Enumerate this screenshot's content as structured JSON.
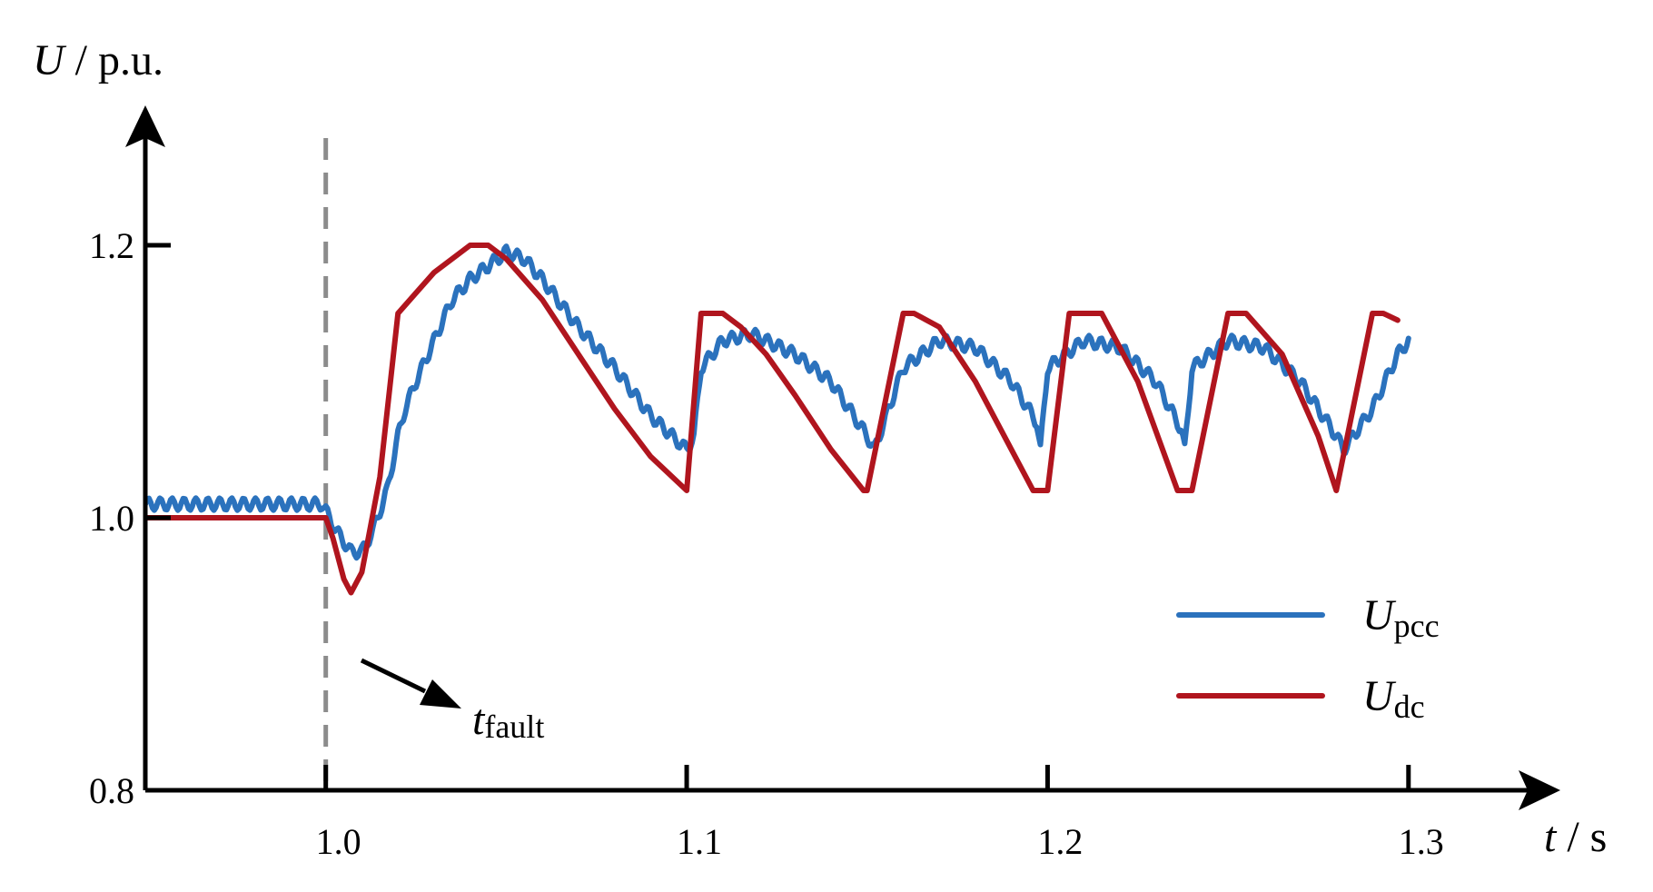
{
  "chart_data": {
    "type": "line",
    "xlabel": {
      "main": "t",
      "unit": " / s"
    },
    "ylabel": {
      "main": "U",
      "unit": " / p.u."
    },
    "xlim": [
      0.95,
      1.33
    ],
    "ylim": [
      0.8,
      1.28
    ],
    "xticks": [
      1.0,
      1.1,
      1.2,
      1.3
    ],
    "xtick_labels": [
      "1.0",
      "1.1",
      "1.2",
      "1.3"
    ],
    "yticks": [
      0.8,
      1.0,
      1.2
    ],
    "ytick_labels": [
      "0.8",
      "1.0",
      "1.2"
    ],
    "grid": false,
    "legend_position": "bottom-right",
    "annotation": {
      "main": "t",
      "sub": "fault",
      "x": 1.0
    },
    "series": [
      {
        "name": "U",
        "name_sub": "pcc",
        "color": "#2b72bd",
        "ripple": 0.0045,
        "x": [
          0.95,
          0.999,
          1.0,
          1.003,
          1.007,
          1.01,
          1.013,
          1.017,
          1.02,
          1.022,
          1.025,
          1.03,
          1.035,
          1.04,
          1.045,
          1.05,
          1.055,
          1.06,
          1.07,
          1.08,
          1.09,
          1.1,
          1.102,
          1.104,
          1.11,
          1.118,
          1.13,
          1.14,
          1.15,
          1.152,
          1.16,
          1.17,
          1.18,
          1.19,
          1.197,
          1.198,
          1.2,
          1.21,
          1.22,
          1.23,
          1.237,
          1.238,
          1.24,
          1.25,
          1.26,
          1.27,
          1.28,
          1.282,
          1.29,
          1.297,
          1.3
        ],
        "y": [
          1.01,
          1.01,
          1.005,
          0.99,
          0.975,
          0.975,
          0.99,
          1.02,
          1.06,
          1.08,
          1.1,
          1.13,
          1.16,
          1.175,
          1.185,
          1.195,
          1.19,
          1.175,
          1.14,
          1.11,
          1.075,
          1.05,
          1.06,
          1.11,
          1.13,
          1.135,
          1.12,
          1.1,
          1.06,
          1.05,
          1.11,
          1.13,
          1.125,
          1.1,
          1.07,
          1.05,
          1.11,
          1.13,
          1.125,
          1.1,
          1.065,
          1.05,
          1.11,
          1.13,
          1.125,
          1.1,
          1.06,
          1.05,
          1.08,
          1.12,
          1.13
        ]
      },
      {
        "name": "U",
        "name_sub": "dc",
        "color": "#b0151e",
        "ripple": 0,
        "x": [
          0.95,
          1.0,
          1.002,
          1.005,
          1.007,
          1.01,
          1.015,
          1.02,
          1.025,
          1.03,
          1.04,
          1.045,
          1.05,
          1.06,
          1.07,
          1.08,
          1.09,
          1.1,
          1.104,
          1.11,
          1.115,
          1.122,
          1.13,
          1.14,
          1.149,
          1.15,
          1.16,
          1.163,
          1.17,
          1.18,
          1.196,
          1.2,
          1.206,
          1.215,
          1.225,
          1.236,
          1.24,
          1.25,
          1.255,
          1.265,
          1.275,
          1.28,
          1.29,
          1.293,
          1.297
        ],
        "y": [
          1.0,
          1.0,
          0.985,
          0.955,
          0.945,
          0.96,
          1.03,
          1.15,
          1.165,
          1.18,
          1.2,
          1.2,
          1.19,
          1.16,
          1.12,
          1.08,
          1.045,
          1.02,
          1.15,
          1.15,
          1.14,
          1.12,
          1.09,
          1.05,
          1.02,
          1.02,
          1.15,
          1.15,
          1.14,
          1.1,
          1.02,
          1.02,
          1.15,
          1.15,
          1.1,
          1.02,
          1.02,
          1.15,
          1.15,
          1.12,
          1.06,
          1.02,
          1.15,
          1.15,
          1.145
        ]
      }
    ]
  }
}
